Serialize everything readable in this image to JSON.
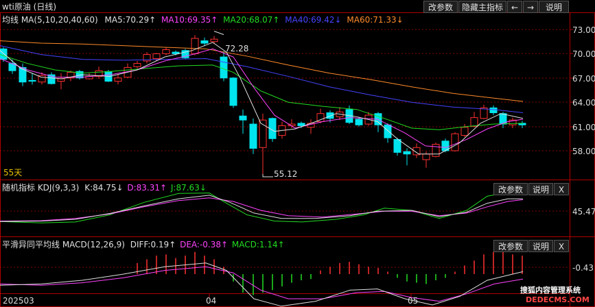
{
  "window": {
    "title": "wti原油 (日线)"
  },
  "toolbar": {
    "params": "改参数",
    "hide": "隐藏主指标",
    "left": "←",
    "right": "→",
    "help": "说明"
  },
  "ma_legend": {
    "head": "均线  MA(5,10,20,40,60)",
    "items": [
      {
        "text": "MA5:70.29↑",
        "color": "#e0e0e0"
      },
      {
        "text": "MA10:69.35↑",
        "color": "#ff44ff"
      },
      {
        "text": "MA20:68.07↑",
        "color": "#22dd22"
      },
      {
        "text": "MA40:69.42↓",
        "color": "#4444ff"
      },
      {
        "text": "MA60:71.33↓",
        "color": "#ff8a2a"
      }
    ]
  },
  "main_axis": [
    "73.00",
    "70.00",
    "67.00",
    "64.00",
    "61.00",
    "58.00"
  ],
  "annot": {
    "high": "72.28",
    "low": "55.12",
    "days": "55天"
  },
  "kdj": {
    "head": "随机指标  KDJ(9,3,3)",
    "k": "K:84.75↓",
    "d": "D:83.31↑",
    "j": "J:87.63↓",
    "k_color": "#e0e0e0",
    "d_color": "#ff44ff",
    "j_color": "#22dd22",
    "axis": "45.47",
    "params": "改参数",
    "help": "说明",
    "close": "X"
  },
  "macd": {
    "head": "平滑异同平均线  MACD(12,26,9)",
    "diff": "DIFF:0.19↑",
    "dea": "DEA:-0.38↑",
    "macd": "MACD:1.14↑",
    "diff_color": "#e0e0e0",
    "dea_color": "#ff44ff",
    "macd_color": "#22dd22",
    "axis": "-0.43",
    "params": "改参数",
    "help": "说明",
    "close": "X"
  },
  "x_axis": [
    "202503",
    "04",
    "05"
  ],
  "watermark": {
    "line1": "搜狐内容管理系统",
    "line2": "DEDECMS.COM"
  },
  "colors": {
    "up": "#ff3030",
    "down": "#00e5ee",
    "bg": "#000000",
    "grid": "#b00000"
  }
}
